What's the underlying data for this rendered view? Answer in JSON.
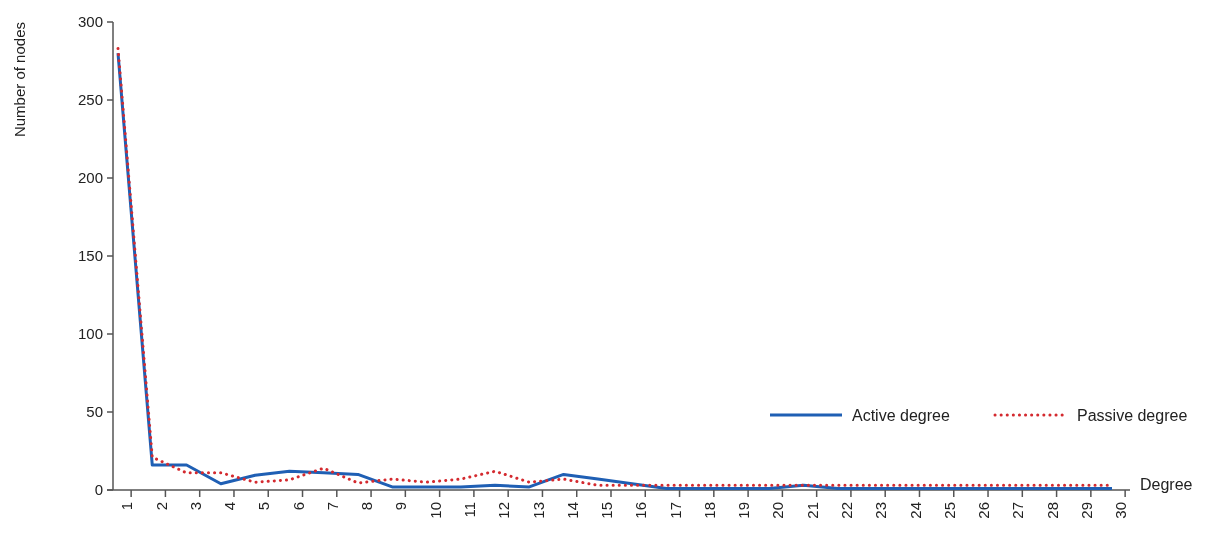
{
  "chart_data": {
    "type": "line",
    "xlabel": "Degree",
    "ylabel": "Number of nodes",
    "categories": [
      "1",
      "2",
      "3",
      "4",
      "5",
      "6",
      "7",
      "8",
      "9",
      "10",
      "11",
      "12",
      "13",
      "14",
      "15",
      "16",
      "17",
      "18",
      "19",
      "20",
      "21",
      "22",
      "23",
      "24",
      "25",
      "26",
      "27",
      "28",
      "29",
      "30"
    ],
    "series": [
      {
        "name": "Active degree",
        "color": "#1f5fb4",
        "line_style": "solid",
        "values": [
          280,
          16,
          16,
          4,
          9.5,
          12,
          11,
          10,
          2,
          2,
          2,
          3,
          2,
          10,
          7,
          4,
          1,
          1,
          1,
          1,
          3,
          1,
          1,
          1,
          1,
          1,
          1,
          1,
          1,
          1
        ]
      },
      {
        "name": "Passive degree",
        "color": "#d42a2f",
        "line_style": "dotted",
        "values": [
          283,
          21,
          11,
          11,
          5,
          6.5,
          14,
          4.5,
          7,
          5,
          7,
          12,
          5,
          7,
          3,
          3,
          3,
          3,
          3,
          3,
          3,
          3,
          3,
          3,
          3,
          3,
          3,
          3,
          3,
          3
        ]
      }
    ],
    "ylim": [
      0,
      300
    ],
    "yticks": [
      0,
      50,
      100,
      150,
      200,
      250,
      300
    ],
    "grid": false,
    "legend": "right"
  }
}
